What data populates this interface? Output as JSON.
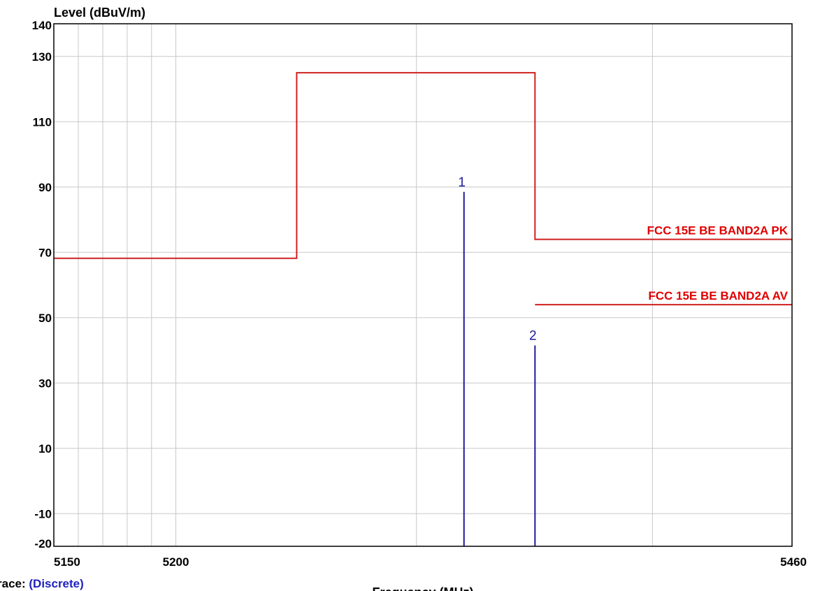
{
  "chart_data": {
    "type": "line",
    "ylabel": "Level (dBuV/m)",
    "xlabel": "Frequency (MHz)",
    "xlim": [
      5150,
      5460
    ],
    "ylim": [
      -20,
      140
    ],
    "x_scale": "log",
    "y_ticks": [
      140,
      130,
      110,
      90,
      70,
      50,
      30,
      10,
      -10,
      -20
    ],
    "x_tick_labels": [
      5150,
      5200,
      5460
    ],
    "x_grid": [
      5150,
      5160,
      5170,
      5180,
      5190,
      5200,
      5300,
      5400,
      5460
    ],
    "y_grid": [
      130,
      110,
      90,
      70,
      50,
      30,
      10,
      -10
    ],
    "grid": true,
    "colors": {
      "limit": "#d02020",
      "limit_label": "#e00000",
      "marker": "#1c1c9c",
      "grid": "#c8c8c8"
    },
    "series": [
      {
        "name": "FCC 15E BE BAND2A PK",
        "points": [
          [
            5150,
            68.2
          ],
          [
            5250,
            68.2
          ],
          [
            5250,
            125
          ],
          [
            5350,
            125
          ],
          [
            5350,
            74
          ],
          [
            5460,
            74
          ]
        ]
      },
      {
        "name": "FCC 15E BE BAND2A AV",
        "points": [
          [
            5350,
            54
          ],
          [
            5460,
            54
          ]
        ]
      }
    ],
    "markers": [
      {
        "label": "1",
        "x": 5320,
        "y": 88.5
      },
      {
        "label": "2",
        "x": 5350,
        "y": 41.5
      }
    ]
  },
  "footer": {
    "trace_prefix": "race:",
    "trace_value": "(Discrete)"
  }
}
